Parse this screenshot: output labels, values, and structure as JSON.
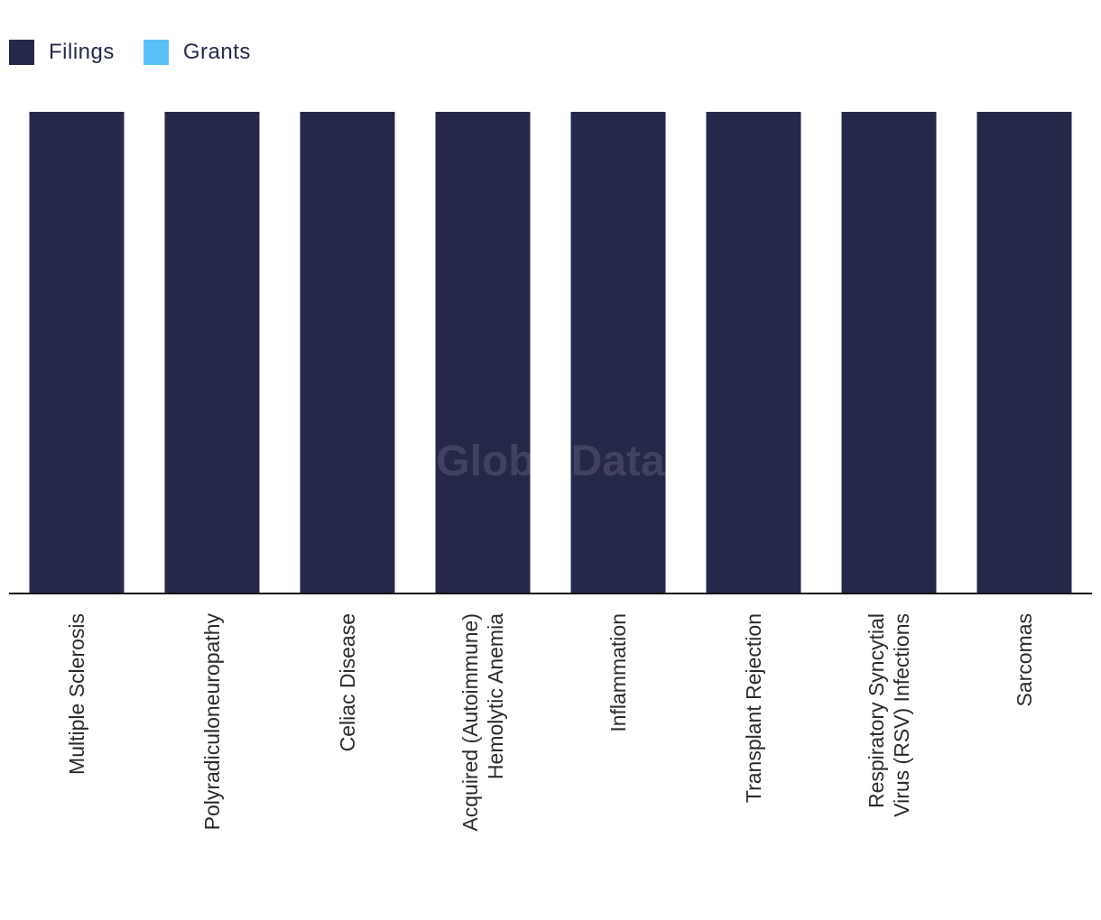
{
  "legend": [
    {
      "label": "Filings",
      "color": "#262849"
    },
    {
      "label": "Grants",
      "color": "#5bc0f8"
    }
  ],
  "watermark": "GlobalData",
  "chart_data": {
    "type": "bar",
    "categories": [
      [
        "Multiple Sclerosis"
      ],
      [
        "Polyradiculoneuropathy"
      ],
      [
        "Celiac Disease"
      ],
      [
        "Acquired (Autoimmune)",
        "Hemolytic Anemia"
      ],
      [
        "Inflammation"
      ],
      [
        "Transplant Rejection"
      ],
      [
        "Respiratory Syncytial",
        "Virus (RSV) Infections"
      ],
      [
        "Sarcomas"
      ]
    ],
    "series": [
      {
        "name": "Filings",
        "color": "#262849",
        "values": [
          1,
          1,
          1,
          1,
          1,
          1,
          1,
          1
        ]
      },
      {
        "name": "Grants",
        "color": "#5bc0f8",
        "values": [
          0,
          0,
          0,
          0,
          0,
          0,
          0,
          0
        ]
      }
    ],
    "ylim": [
      0,
      1
    ],
    "grid": false,
    "legend_position": "top-left"
  }
}
